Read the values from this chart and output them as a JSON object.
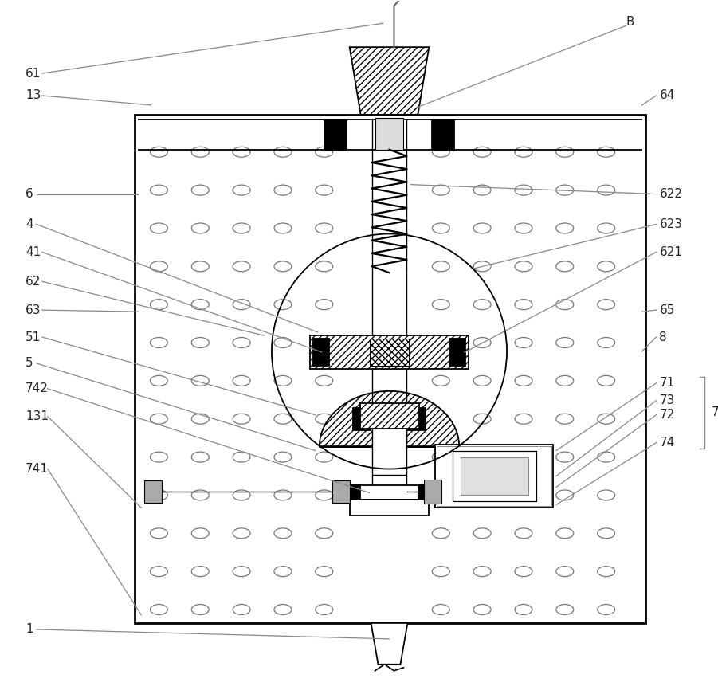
{
  "bg_color": "#ffffff",
  "line_color": "#000000",
  "fig_width": 9.01,
  "fig_height": 8.71,
  "label_fontsize": 11
}
